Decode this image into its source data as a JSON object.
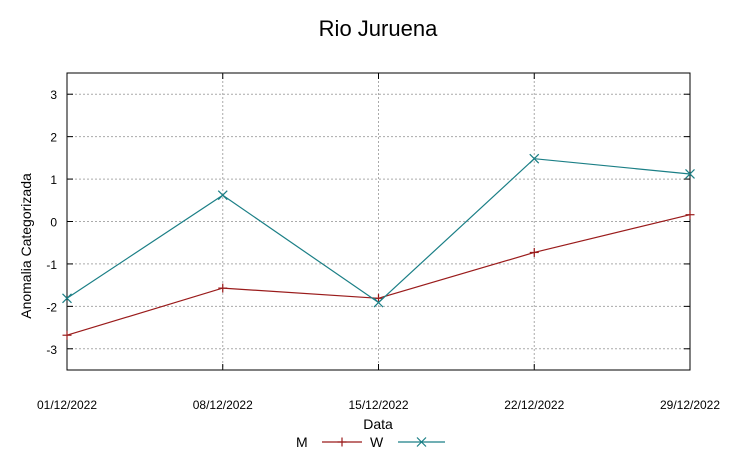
{
  "chart_data": {
    "type": "line",
    "title": "Rio Juruena",
    "xlabel": "Data",
    "ylabel": "Anomalia Categorizada",
    "categories": [
      "01/12/2022",
      "08/12/2022",
      "15/12/2022",
      "22/12/2022",
      "29/12/2022"
    ],
    "ylim": [
      -3.5,
      3.5
    ],
    "yticks": [
      "3",
      "2",
      "1",
      "0",
      "-1",
      "-2",
      "-3"
    ],
    "grid": true,
    "legend_position": "bottom",
    "series": [
      {
        "name": "M",
        "values": [
          -2.68,
          -1.57,
          -1.81,
          -0.73,
          0.16
        ],
        "color": "#9a1b1b",
        "marker": "plus"
      },
      {
        "name": "W",
        "values": [
          -1.81,
          0.62,
          -1.91,
          1.48,
          1.12
        ],
        "color": "#1b7f86",
        "marker": "x"
      }
    ]
  }
}
